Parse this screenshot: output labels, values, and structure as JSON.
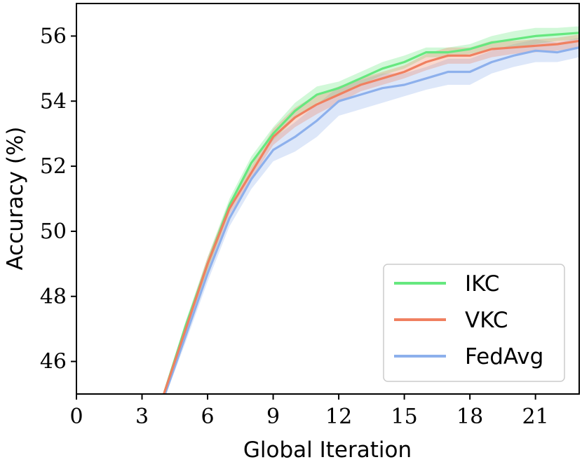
{
  "chart_data": {
    "type": "line",
    "title": "",
    "xlabel": "Global Iteration",
    "ylabel": "Accuracy (%)",
    "xlim": [
      0,
      23
    ],
    "ylim": [
      45,
      57
    ],
    "xticks": [
      0,
      3,
      6,
      9,
      12,
      15,
      18,
      21
    ],
    "xtick_labels": [
      "0",
      "3",
      "6",
      "9",
      "12",
      "15",
      "18",
      "21"
    ],
    "yticks": [
      46,
      48,
      50,
      52,
      54,
      56
    ],
    "ytick_labels": [
      "46",
      "48",
      "50",
      "52",
      "54",
      "56"
    ],
    "grid": false,
    "legend_position": "lower-right",
    "x": [
      4,
      5,
      6,
      7,
      8,
      9,
      10,
      11,
      12,
      13,
      14,
      15,
      16,
      17,
      18,
      19,
      20,
      21,
      22,
      23
    ],
    "series": [
      {
        "name": "IKC",
        "color": "#66e87f",
        "values": [
          45.0,
          47.1,
          49.0,
          50.8,
          52.1,
          53.0,
          53.7,
          54.2,
          54.4,
          54.7,
          55.0,
          55.2,
          55.5,
          55.5,
          55.6,
          55.8,
          55.9,
          56.0,
          56.05,
          56.1
        ],
        "band": [
          0.1,
          0.15,
          0.2,
          0.2,
          0.2,
          0.2,
          0.25,
          0.25,
          0.2,
          0.2,
          0.2,
          0.2,
          0.15,
          0.15,
          0.15,
          0.2,
          0.25,
          0.25,
          0.2,
          0.2
        ]
      },
      {
        "name": "VKC",
        "color": "#f08060",
        "values": [
          45.0,
          47.0,
          49.0,
          50.7,
          51.8,
          52.9,
          53.5,
          53.9,
          54.2,
          54.5,
          54.7,
          54.9,
          55.2,
          55.4,
          55.4,
          55.6,
          55.65,
          55.7,
          55.75,
          55.85
        ],
        "band": [
          0.1,
          0.15,
          0.2,
          0.2,
          0.2,
          0.25,
          0.3,
          0.3,
          0.25,
          0.2,
          0.2,
          0.2,
          0.25,
          0.25,
          0.25,
          0.25,
          0.2,
          0.2,
          0.2,
          0.2
        ]
      },
      {
        "name": "FedAvg",
        "color": "#8db0ec",
        "values": [
          44.9,
          46.8,
          48.7,
          50.4,
          51.6,
          52.5,
          52.9,
          53.4,
          54.0,
          54.2,
          54.4,
          54.5,
          54.7,
          54.9,
          54.9,
          55.2,
          55.4,
          55.55,
          55.5,
          55.65
        ],
        "band": [
          0.1,
          0.2,
          0.25,
          0.25,
          0.3,
          0.35,
          0.45,
          0.5,
          0.45,
          0.45,
          0.45,
          0.35,
          0.35,
          0.4,
          0.4,
          0.35,
          0.35,
          0.35,
          0.3,
          0.3
        ]
      }
    ]
  }
}
